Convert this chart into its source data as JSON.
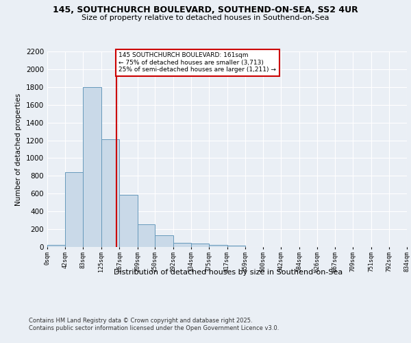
{
  "title1": "145, SOUTHCHURCH BOULEVARD, SOUTHEND-ON-SEA, SS2 4UR",
  "title2": "Size of property relative to detached houses in Southend-on-Sea",
  "xlabel": "Distribution of detached houses by size in Southend-on-Sea",
  "ylabel": "Number of detached properties",
  "footnote1": "Contains HM Land Registry data © Crown copyright and database right 2025.",
  "footnote2": "Contains public sector information licensed under the Open Government Licence v3.0.",
  "annotation_line1": "145 SOUTHCHURCH BOULEVARD: 161sqm",
  "annotation_line2": "← 75% of detached houses are smaller (3,713)",
  "annotation_line3": "25% of semi-detached houses are larger (1,211) →",
  "property_size": 161,
  "bar_edges": [
    0,
    42,
    83,
    125,
    167,
    209,
    250,
    292,
    334,
    375,
    417,
    459,
    500,
    542,
    584,
    626,
    667,
    709,
    751,
    792,
    834
  ],
  "bar_heights": [
    20,
    840,
    1800,
    1210,
    590,
    255,
    130,
    45,
    35,
    20,
    15,
    0,
    0,
    0,
    0,
    0,
    0,
    0,
    0,
    0
  ],
  "bar_color": "#c9d9e8",
  "bar_edge_color": "#6699bb",
  "vline_color": "#cc0000",
  "vline_x": 161,
  "ylim": [
    0,
    2200
  ],
  "yticks": [
    0,
    200,
    400,
    600,
    800,
    1000,
    1200,
    1400,
    1600,
    1800,
    2000,
    2200
  ],
  "bg_color": "#eaeff5",
  "plot_bg_color": "#eaeff5",
  "annotation_box_color": "#cc0000",
  "tick_labels": [
    "0sqm",
    "42sqm",
    "83sqm",
    "125sqm",
    "167sqm",
    "209sqm",
    "250sqm",
    "292sqm",
    "334sqm",
    "375sqm",
    "417sqm",
    "459sqm",
    "500sqm",
    "542sqm",
    "584sqm",
    "626sqm",
    "667sqm",
    "709sqm",
    "751sqm",
    "792sqm",
    "834sqm"
  ]
}
